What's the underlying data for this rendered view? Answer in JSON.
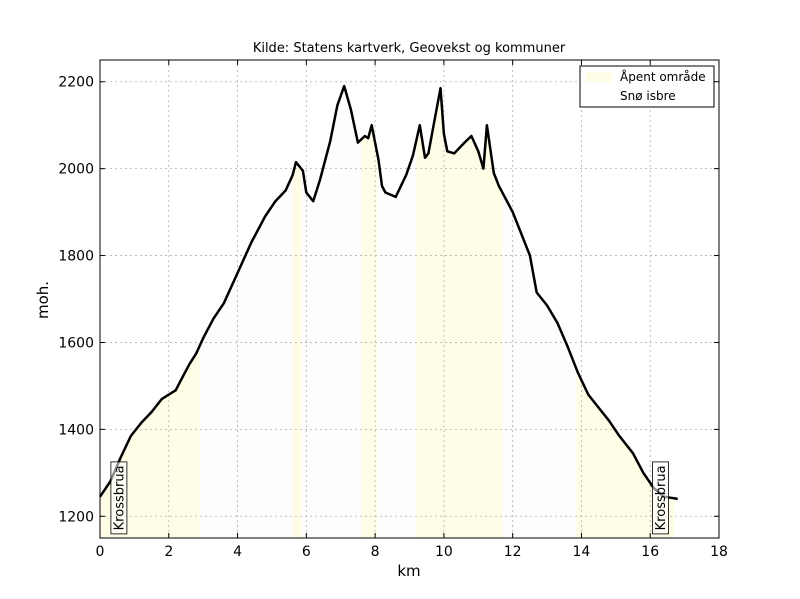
{
  "chart_data": {
    "type": "area",
    "title": "Kilde: Statens kartverk, Geovekst og kommuner",
    "xlabel": "km",
    "ylabel": "moh.",
    "xlim": [
      0,
      18
    ],
    "ylim": [
      1150,
      2250
    ],
    "xticks": [
      "0",
      "2",
      "4",
      "6",
      "8",
      "10",
      "12",
      "14",
      "16",
      "18"
    ],
    "yticks": [
      "1200",
      "1400",
      "1600",
      "1800",
      "2000",
      "2200"
    ],
    "grid": true,
    "legend_position": "top-right",
    "legend": [
      {
        "name": "Åpent område",
        "color": "#fffde6"
      },
      {
        "name": "Snø isbre",
        "color": "#ffffff"
      }
    ],
    "colors": {
      "line": "#000000",
      "open_area": "#fffde6",
      "snow": "#fdfdfd",
      "grid": "#b0b0b0"
    },
    "elevation_profile": {
      "x": [
        0,
        0.3,
        0.6,
        0.9,
        1.2,
        1.5,
        1.8,
        2.0,
        2.2,
        2.4,
        2.6,
        2.8,
        3.0,
        3.3,
        3.6,
        4.0,
        4.4,
        4.8,
        5.1,
        5.4,
        5.6,
        5.7,
        5.9,
        6.0,
        6.2,
        6.4,
        6.7,
        6.9,
        7.1,
        7.3,
        7.5,
        7.7,
        7.8,
        7.9,
        8.0,
        8.1,
        8.2,
        8.3,
        8.6,
        8.9,
        9.1,
        9.3,
        9.45,
        9.55,
        9.7,
        9.9,
        10.0,
        10.1,
        10.3,
        10.6,
        10.8,
        11.0,
        11.15,
        11.25,
        11.45,
        11.6,
        12.0,
        12.5,
        12.7,
        13.0,
        13.3,
        13.6,
        13.9,
        14.2,
        14.5,
        14.8,
        15.1,
        15.5,
        15.8,
        16.1,
        16.4,
        16.8
      ],
      "y": [
        1245,
        1280,
        1335,
        1385,
        1415,
        1440,
        1470,
        1480,
        1490,
        1520,
        1550,
        1575,
        1610,
        1655,
        1690,
        1760,
        1830,
        1890,
        1925,
        1950,
        1985,
        2015,
        1995,
        1945,
        1925,
        1975,
        2065,
        2145,
        2190,
        2135,
        2060,
        2075,
        2070,
        2100,
        2060,
        2020,
        1960,
        1945,
        1935,
        1985,
        2030,
        2100,
        2025,
        2035,
        2100,
        2185,
        2080,
        2040,
        2035,
        2060,
        2075,
        2040,
        2000,
        2100,
        1990,
        1960,
        1900,
        1800,
        1715,
        1685,
        1645,
        1590,
        1530,
        1480,
        1450,
        1420,
        1385,
        1345,
        1300,
        1265,
        1245,
        1240
      ]
    },
    "open_area_ranges": [
      [
        0,
        2.9
      ],
      [
        5.6,
        5.85
      ],
      [
        7.6,
        8.05
      ],
      [
        9.2,
        11.7
      ],
      [
        13.85,
        16.7
      ]
    ],
    "snow_ranges": [
      [
        2.9,
        5.6
      ],
      [
        5.85,
        7.6
      ],
      [
        8.05,
        9.2
      ],
      [
        11.7,
        13.85
      ]
    ],
    "annotations": [
      {
        "text": "Krossbrua",
        "x": 0.55,
        "y": 1210
      },
      {
        "text": "Krossbrua",
        "x": 16.3,
        "y": 1210
      }
    ]
  }
}
